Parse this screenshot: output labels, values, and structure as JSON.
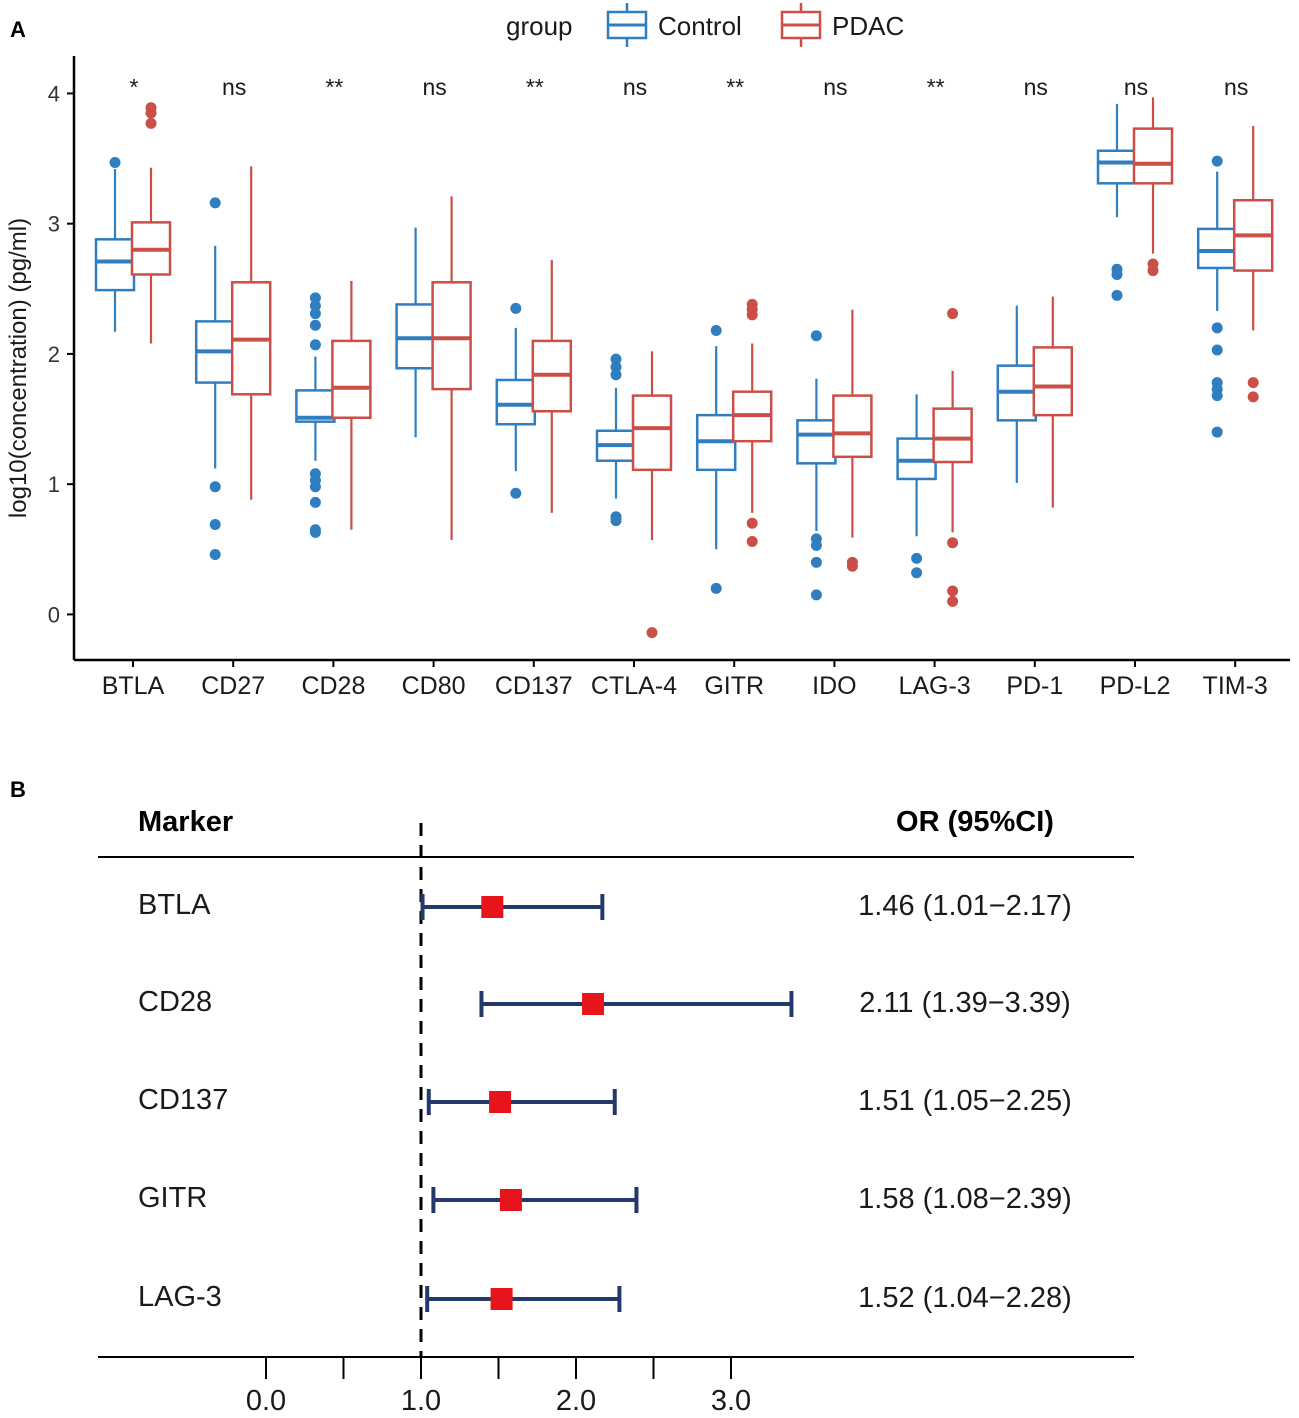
{
  "chart_data": [
    {
      "panel": "A",
      "type": "boxplot",
      "legend": {
        "title": "group",
        "placement": "top",
        "entries": [
          "Control",
          "PDAC"
        ]
      },
      "ylabel": "log10(concentration) (pg/ml)",
      "xlabel": "",
      "ylim": [
        -0.35,
        4.18
      ],
      "yticks": [
        0,
        1,
        2,
        3,
        4
      ],
      "colors": {
        "Control": "#2E7EC0",
        "PDAC": "#CB4F46"
      },
      "categories": [
        "BTLA",
        "CD27",
        "CD28",
        "CD80",
        "CD137",
        "CTLA-4",
        "GITR",
        "IDO",
        "LAG-3",
        "PD-1",
        "PD-L2",
        "TIM-3"
      ],
      "significance": [
        "*",
        "ns",
        "**",
        "ns",
        "**",
        "ns",
        "**",
        "ns",
        "**",
        "ns",
        "ns",
        "ns"
      ],
      "series": [
        {
          "name": "Control",
          "boxes": [
            {
              "low": 2.17,
              "q1": 2.49,
              "median": 2.71,
              "q3": 2.88,
              "high": 3.42,
              "outliers": [
                3.47
              ]
            },
            {
              "low": 1.12,
              "q1": 1.78,
              "median": 2.02,
              "q3": 2.25,
              "high": 2.83,
              "outliers": [
                3.16,
                0.98,
                0.69,
                0.46
              ]
            },
            {
              "low": 1.18,
              "q1": 1.48,
              "median": 1.51,
              "q3": 1.72,
              "high": 1.98,
              "outliers": [
                2.43,
                2.37,
                2.31,
                2.22,
                2.07,
                1.08,
                1.03,
                0.98,
                0.86,
                0.65,
                0.63
              ]
            },
            {
              "low": 1.36,
              "q1": 1.89,
              "median": 2.12,
              "q3": 2.38,
              "high": 2.97,
              "outliers": []
            },
            {
              "low": 1.1,
              "q1": 1.46,
              "median": 1.61,
              "q3": 1.8,
              "high": 2.2,
              "outliers": [
                2.35,
                0.93
              ]
            },
            {
              "low": 0.89,
              "q1": 1.18,
              "median": 1.3,
              "q3": 1.41,
              "high": 1.74,
              "outliers": [
                1.96,
                1.9,
                1.84,
                0.75,
                0.72
              ]
            },
            {
              "low": 0.5,
              "q1": 1.11,
              "median": 1.33,
              "q3": 1.53,
              "high": 2.06,
              "outliers": [
                2.18,
                0.2
              ]
            },
            {
              "low": 0.64,
              "q1": 1.16,
              "median": 1.38,
              "q3": 1.49,
              "high": 1.81,
              "outliers": [
                2.14,
                0.58,
                0.53,
                0.4,
                0.15
              ]
            },
            {
              "low": 0.6,
              "q1": 1.04,
              "median": 1.18,
              "q3": 1.35,
              "high": 1.69,
              "outliers": [
                0.43,
                0.32
              ]
            },
            {
              "low": 1.01,
              "q1": 1.49,
              "median": 1.71,
              "q3": 1.91,
              "high": 2.37,
              "outliers": []
            },
            {
              "low": 3.05,
              "q1": 3.31,
              "median": 3.47,
              "q3": 3.56,
              "high": 3.92,
              "outliers": [
                2.65,
                2.61,
                2.45
              ]
            },
            {
              "low": 2.33,
              "q1": 2.66,
              "median": 2.79,
              "q3": 2.96,
              "high": 3.4,
              "outliers": [
                3.48,
                2.2,
                2.03,
                1.78,
                1.73,
                1.68,
                1.4
              ]
            }
          ]
        },
        {
          "name": "PDAC",
          "boxes": [
            {
              "low": 2.08,
              "q1": 2.61,
              "median": 2.8,
              "q3": 3.01,
              "high": 3.43,
              "outliers": [
                3.89,
                3.85,
                3.77
              ]
            },
            {
              "low": 0.88,
              "q1": 1.69,
              "median": 2.11,
              "q3": 2.55,
              "high": 3.44,
              "outliers": []
            },
            {
              "low": 0.65,
              "q1": 1.51,
              "median": 1.74,
              "q3": 2.1,
              "high": 2.56,
              "outliers": []
            },
            {
              "low": 0.57,
              "q1": 1.73,
              "median": 2.12,
              "q3": 2.55,
              "high": 3.21,
              "outliers": []
            },
            {
              "low": 0.78,
              "q1": 1.56,
              "median": 1.84,
              "q3": 2.1,
              "high": 2.72,
              "outliers": []
            },
            {
              "low": 0.57,
              "q1": 1.11,
              "median": 1.43,
              "q3": 1.68,
              "high": 2.02,
              "outliers": [
                -0.14
              ]
            },
            {
              "low": 0.78,
              "q1": 1.33,
              "median": 1.53,
              "q3": 1.71,
              "high": 2.08,
              "outliers": [
                2.38,
                2.34,
                2.3,
                0.7,
                0.56
              ]
            },
            {
              "low": 0.59,
              "q1": 1.21,
              "median": 1.39,
              "q3": 1.68,
              "high": 2.34,
              "outliers": [
                0.4,
                0.37
              ]
            },
            {
              "low": 0.63,
              "q1": 1.17,
              "median": 1.35,
              "q3": 1.58,
              "high": 1.87,
              "outliers": [
                2.31,
                0.55,
                0.18,
                0.1
              ]
            },
            {
              "low": 0.82,
              "q1": 1.53,
              "median": 1.75,
              "q3": 2.05,
              "high": 2.44,
              "outliers": []
            },
            {
              "low": 2.77,
              "q1": 3.31,
              "median": 3.46,
              "q3": 3.73,
              "high": 3.97,
              "outliers": [
                2.69,
                2.64
              ]
            },
            {
              "low": 2.18,
              "q1": 2.64,
              "median": 2.91,
              "q3": 3.18,
              "high": 3.75,
              "outliers": [
                1.78,
                1.67
              ]
            }
          ]
        }
      ]
    },
    {
      "panel": "B",
      "type": "forest",
      "headers": {
        "left": "Marker",
        "right": "OR (95%CI)"
      },
      "reference_line": 1.0,
      "xlim": [
        -0.6,
        4.0
      ],
      "xticks": [
        0.0,
        0.5,
        1.0,
        1.5,
        2.0,
        2.5,
        3.0
      ],
      "xtick_labels": [
        "0.0",
        "",
        "1.0",
        "",
        "2.0",
        "",
        "3.0"
      ],
      "marker_color": "#E8141B",
      "ci_color": "#24386B",
      "rows": [
        {
          "label": "BTLA",
          "or": 1.46,
          "lo": 1.01,
          "hi": 2.17,
          "text": "1.46 (1.01−2.17)"
        },
        {
          "label": "CD28",
          "or": 2.11,
          "lo": 1.39,
          "hi": 3.39,
          "text": "2.11 (1.39−3.39)"
        },
        {
          "label": "CD137",
          "or": 1.51,
          "lo": 1.05,
          "hi": 2.25,
          "text": "1.51 (1.05−2.25)"
        },
        {
          "label": "GITR",
          "or": 1.58,
          "lo": 1.08,
          "hi": 2.39,
          "text": "1.58 (1.08−2.39)"
        },
        {
          "label": "LAG-3",
          "or": 1.52,
          "lo": 1.04,
          "hi": 2.28,
          "text": "1.52 (1.04−2.28)"
        }
      ]
    }
  ],
  "panel_labels": {
    "a": "A",
    "b": "B"
  }
}
